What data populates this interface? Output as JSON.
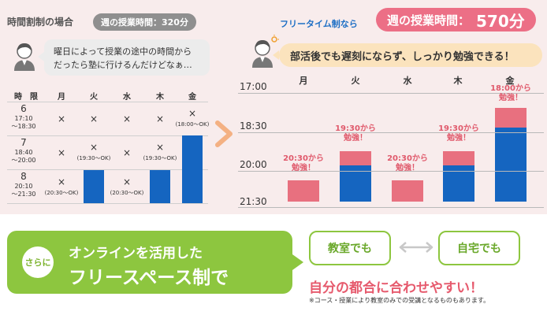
{
  "left": {
    "title": "時間割制の場合",
    "weekly_badge": "週の授業時間：320分",
    "bubble_line1": "曜日によって授業の途中の時間から",
    "bubble_line2": "だったら塾に行けるんだけどなぁ…",
    "table": {
      "head_period": "時　限",
      "days": [
        "月",
        "火",
        "水",
        "木",
        "金"
      ],
      "periods": [
        {
          "num": "6",
          "time1": "17:10",
          "time2": "〜18:30"
        },
        {
          "num": "7",
          "time1": "18:40",
          "time2": "〜20:00"
        },
        {
          "num": "8",
          "time1": "20:10",
          "time2": "〜21:30"
        }
      ],
      "x_mark": "×",
      "notes": {
        "fri_6": "(18:00〜OK)",
        "tue_7": "(19:30〜OK)",
        "thu_7": "(19:30〜OK)",
        "mon_8": "(20:30〜OK)",
        "wed_8": "(20:30〜OK)"
      }
    }
  },
  "right": {
    "label": "フリータイム制なら",
    "weekly_label": "週の授業時間：",
    "weekly_value": "570分",
    "bubble": "部活後でも遅刻にならず、しっかり勉強できる！",
    "times": [
      "17:00",
      "18:30",
      "20:00",
      "21:30"
    ],
    "days": [
      "月",
      "火",
      "水",
      "木",
      "金"
    ],
    "start_labels": [
      {
        "line1": "20:30から",
        "line2": "勉強！"
      },
      {
        "line1": "19:30から",
        "line2": "勉強！"
      },
      {
        "line1": "20:30から",
        "line2": "勉強！"
      },
      {
        "line1": "19:30から",
        "line2": "勉強！"
      },
      {
        "line1": "18:00から",
        "line2": "勉強！"
      }
    ]
  },
  "bottom": {
    "sarani": "さらに",
    "line1": "オンラインを活用した",
    "line2": "フリースペース制で",
    "classroom": "教室でも",
    "home": "自宅でも",
    "tagline": "自分の都合に合わせやすい！",
    "footnote": "※コース・授業により教室のみでの受講となるものもあります。"
  },
  "colors": {
    "blue_bar": "#1565c0",
    "pink_bar": "#e8707f",
    "green": "#8dc63f",
    "pink_text": "#e65a6d",
    "panel_bg": "#f8ecec"
  }
}
